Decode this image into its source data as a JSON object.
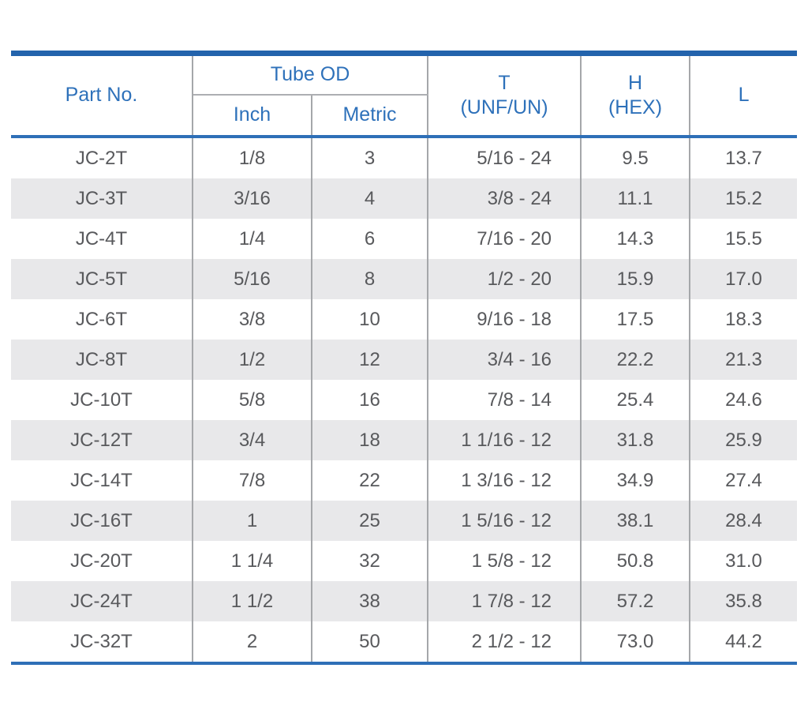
{
  "colors": {
    "top_rule_blue": "#2363ac",
    "header_rule_blue": "#2e6fb7",
    "header_text_blue": "#2e71ba",
    "body_text_gray": "#58595c",
    "grid_line_gray": "#a5a7aa",
    "alt_row_bg": "#e8e8ea"
  },
  "table": {
    "headers": {
      "part_no": "Part No.",
      "tube_od": "Tube OD",
      "inch": "Inch",
      "metric": "Metric",
      "t_line1": "T",
      "t_line2": "(UNF/UN)",
      "h_line1": "H",
      "h_line2": "(HEX)",
      "l": "L"
    },
    "rows": [
      {
        "part_no": "JC-2T",
        "inch": "1/8",
        "metric": "3",
        "t": "5/16 - 24",
        "h": "9.5",
        "l": "13.7"
      },
      {
        "part_no": "JC-3T",
        "inch": "3/16",
        "metric": "4",
        "t": "3/8 - 24",
        "h": "11.1",
        "l": "15.2"
      },
      {
        "part_no": "JC-4T",
        "inch": "1/4",
        "metric": "6",
        "t": "7/16 - 20",
        "h": "14.3",
        "l": "15.5"
      },
      {
        "part_no": "JC-5T",
        "inch": "5/16",
        "metric": "8",
        "t": "1/2 - 20",
        "h": "15.9",
        "l": "17.0"
      },
      {
        "part_no": "JC-6T",
        "inch": "3/8",
        "metric": "10",
        "t": "9/16 - 18",
        "h": "17.5",
        "l": "18.3"
      },
      {
        "part_no": "JC-8T",
        "inch": "1/2",
        "metric": "12",
        "t": "3/4 - 16",
        "h": "22.2",
        "l": "21.3"
      },
      {
        "part_no": "JC-10T",
        "inch": "5/8",
        "metric": "16",
        "t": "7/8 - 14",
        "h": "25.4",
        "l": "24.6"
      },
      {
        "part_no": "JC-12T",
        "inch": "3/4",
        "metric": "18",
        "t": "1 1/16 - 12",
        "h": "31.8",
        "l": "25.9"
      },
      {
        "part_no": "JC-14T",
        "inch": "7/8",
        "metric": "22",
        "t": "1 3/16 - 12",
        "h": "34.9",
        "l": "27.4"
      },
      {
        "part_no": "JC-16T",
        "inch": "1",
        "metric": "25",
        "t": "1 5/16 - 12",
        "h": "38.1",
        "l": "28.4"
      },
      {
        "part_no": "JC-20T",
        "inch": "1 1/4",
        "metric": "32",
        "t": "1 5/8 - 12",
        "h": "50.8",
        "l": "31.0"
      },
      {
        "part_no": "JC-24T",
        "inch": "1 1/2",
        "metric": "38",
        "t": "1 7/8 - 12",
        "h": "57.2",
        "l": "35.8"
      },
      {
        "part_no": "JC-32T",
        "inch": "2",
        "metric": "50",
        "t": "2 1/2 - 12",
        "h": "73.0",
        "l": "44.2"
      }
    ]
  }
}
